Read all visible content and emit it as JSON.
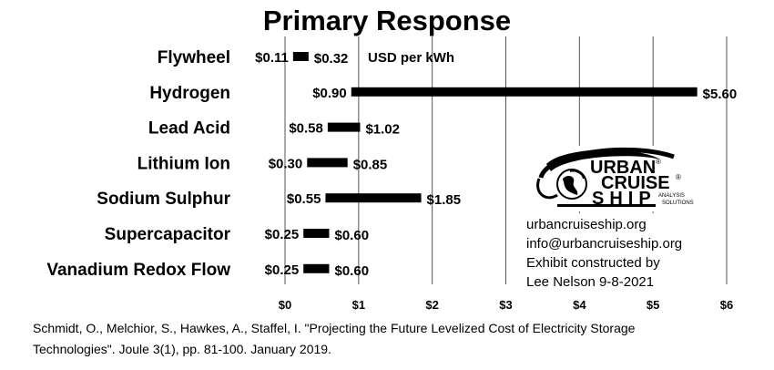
{
  "chart_data": {
    "type": "bar",
    "subtype": "floating-range-horizontal",
    "title": "Primary Response",
    "unit_note": "USD per kWh",
    "categories": [
      "Flywheel",
      "Hydrogen",
      "Lead Acid",
      "Lithium Ion",
      "Sodium Sulphur",
      "Supercapacitor",
      "Vanadium Redox Flow"
    ],
    "low": [
      0.11,
      0.9,
      0.58,
      0.3,
      0.55,
      0.25,
      0.25
    ],
    "high": [
      0.32,
      5.6,
      1.02,
      0.85,
      1.85,
      0.6,
      0.6
    ],
    "low_labels": [
      "$0.11",
      "$0.90",
      "$0.58",
      "$0.30",
      "$0.55",
      "$0.25",
      "$0.25"
    ],
    "high_labels": [
      "$0.32",
      "$5.60",
      "$1.02",
      "$0.85",
      "$1.85",
      "$0.60",
      "$0.60"
    ],
    "xlim": [
      0,
      6
    ],
    "xticks": [
      0,
      1,
      2,
      3,
      4,
      5,
      6
    ],
    "xtick_labels": [
      "$0",
      "$1",
      "$2",
      "$3",
      "$4",
      "$5",
      "$6"
    ],
    "grid": "vertical",
    "bar_color": "#000000",
    "grid_color": "#555555"
  },
  "logo": {
    "line1": "URBAN",
    "line2": "CRUISE",
    "line3": "SHIP",
    "registered": "®",
    "tag1": "ANALYSIS",
    "tag2": "SOLUTIONS"
  },
  "info": {
    "website": "urbancruiseship.org",
    "email": "info@urbancruiseship.org",
    "credit1": "Exhibit constructed by",
    "credit2": "Lee Nelson 9-8-2021"
  },
  "citation": {
    "line1": "Schmidt, O., Melchior, S., Hawkes, A., Staffel, I. \"Projecting the Future Levelized Cost of Electricity Storage",
    "line2": "Technologies\". Joule 3(1), pp. 81-100. January 2019."
  }
}
